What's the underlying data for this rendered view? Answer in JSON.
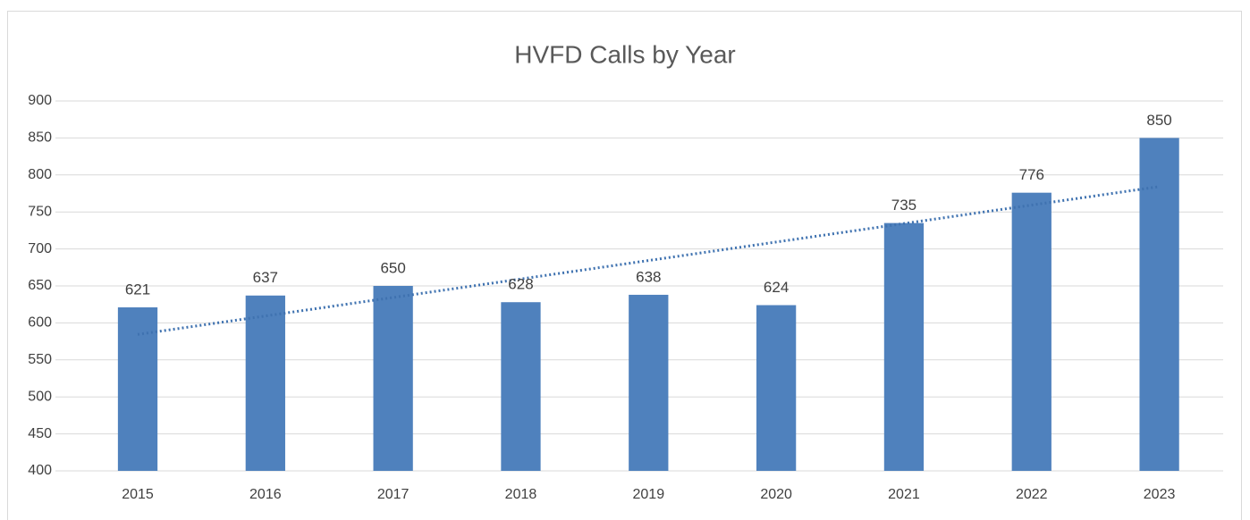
{
  "chart_data": {
    "type": "bar",
    "title": "HVFD Calls by Year",
    "categories": [
      "2015",
      "2016",
      "2017",
      "2018",
      "2019",
      "2020",
      "2021",
      "2022",
      "2023"
    ],
    "values": [
      621,
      637,
      650,
      628,
      638,
      624,
      735,
      776,
      850
    ],
    "color": "#4f81bd",
    "ylim": [
      400,
      900
    ],
    "yticks": [
      400,
      450,
      500,
      550,
      600,
      650,
      700,
      750,
      800,
      850,
      900
    ],
    "grid": true,
    "trendline": "linear",
    "trendline_color": "#3f72b0"
  }
}
